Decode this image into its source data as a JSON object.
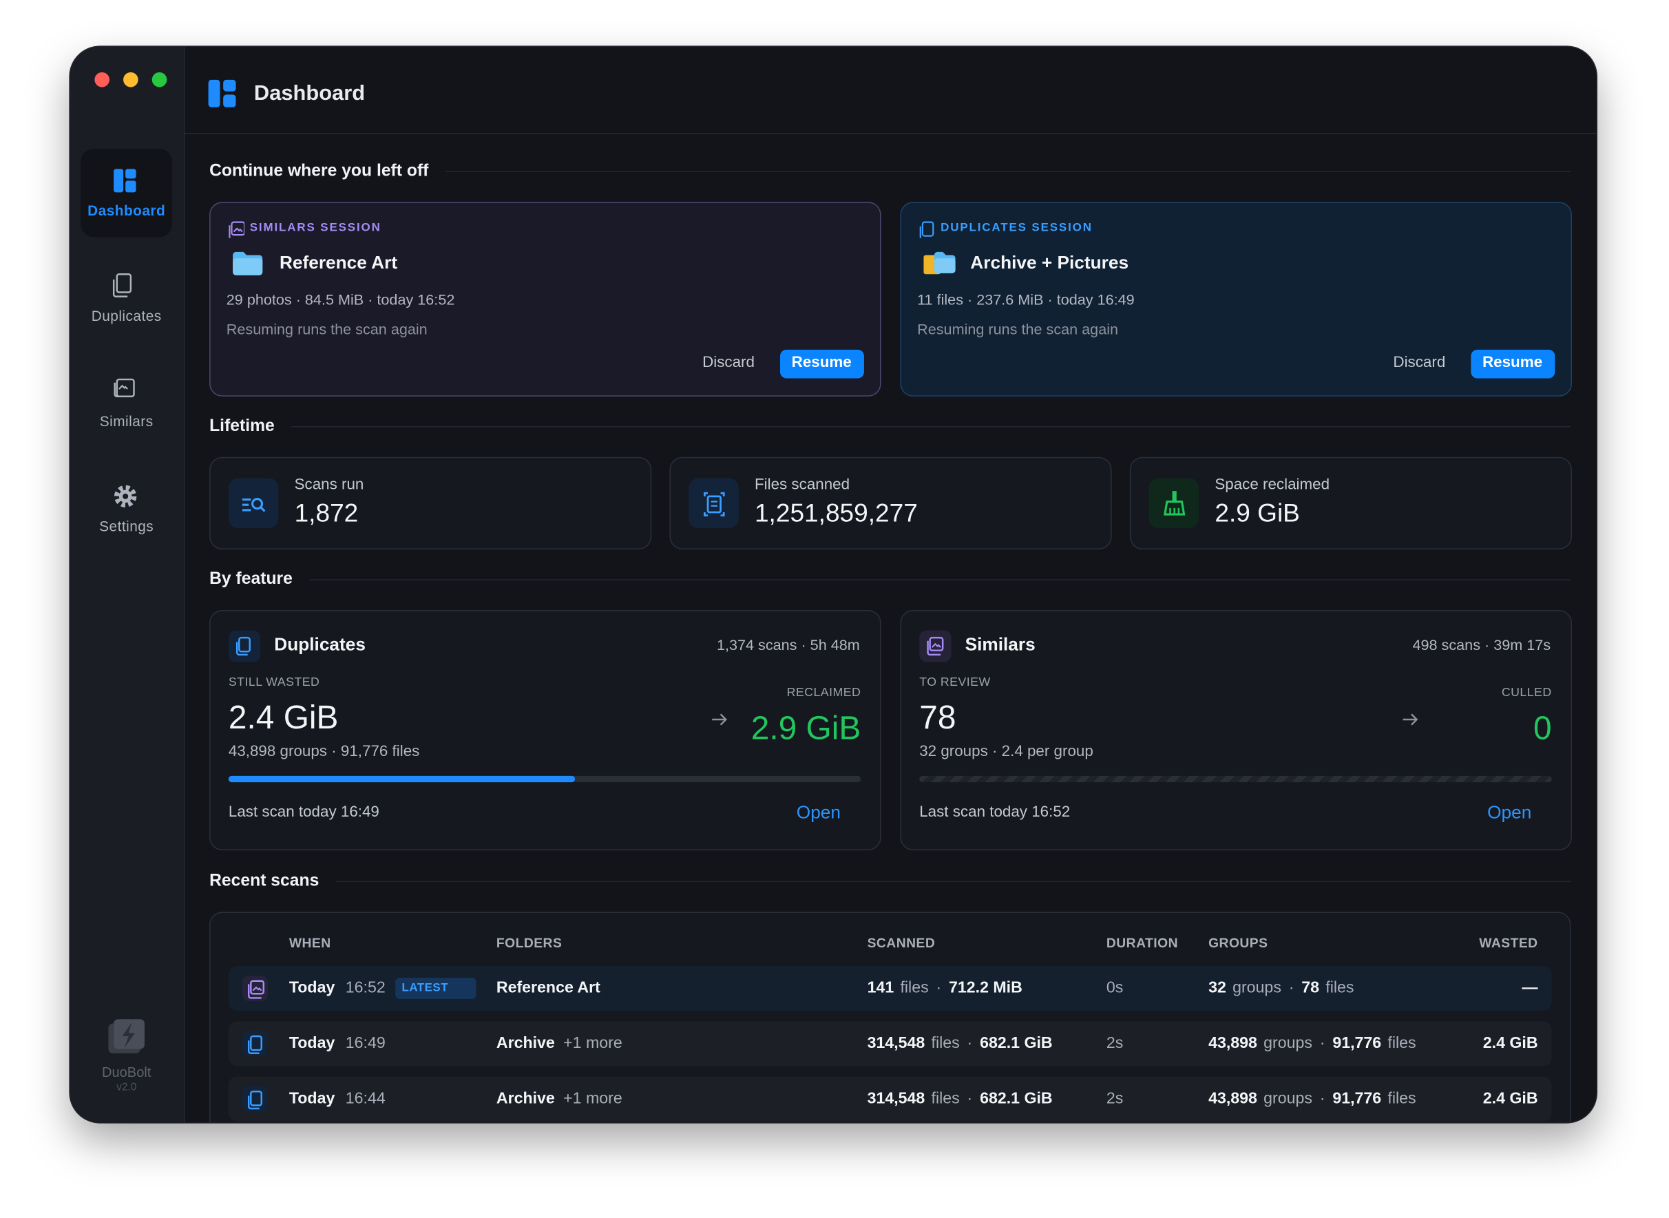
{
  "window": {
    "app_name": "DuoBolt",
    "version": "v2.0"
  },
  "header": {
    "title": "Dashboard"
  },
  "sidebar": {
    "items": [
      {
        "label": "Dashboard",
        "active": true
      },
      {
        "label": "Duplicates"
      },
      {
        "label": "Similars"
      },
      {
        "label": "Settings"
      }
    ]
  },
  "continue": {
    "heading": "Continue where you left off",
    "sessions": [
      {
        "kind": "SIMILARS SESSION",
        "name": "Reference Art",
        "meta": "29 photos · 84.5 MiB · today 16:52",
        "note": "Resuming runs the scan again",
        "discard": "Discard",
        "resume": "Resume"
      },
      {
        "kind": "DUPLICATES SESSION",
        "name": "Archive + Pictures",
        "meta": "11 files · 237.6 MiB · today 16:49",
        "note": "Resuming runs the scan again",
        "discard": "Discard",
        "resume": "Resume"
      }
    ]
  },
  "lifetime": {
    "heading": "Lifetime",
    "stats": [
      {
        "label": "Scans run",
        "value": "1,872"
      },
      {
        "label": "Files scanned",
        "value": "1,251,859,277"
      },
      {
        "label": "Space reclaimed",
        "value": "2.9 GiB"
      }
    ]
  },
  "by_feature": {
    "heading": "By feature",
    "cards": [
      {
        "name": "Duplicates",
        "summary": "1,374 scans · 5h 48m",
        "primary_label": "STILL WASTED",
        "primary_value": "2.4 GiB",
        "detail": "43,898 groups · 91,776 files",
        "secondary_label": "RECLAIMED",
        "secondary_value": "2.9 GiB",
        "last_scan": "Last scan today 16:49",
        "open": "Open"
      },
      {
        "name": "Similars",
        "summary": "498 scans · 39m 17s",
        "primary_label": "TO REVIEW",
        "primary_value": "78",
        "detail": "32 groups · 2.4 per group",
        "secondary_label": "CULLED",
        "secondary_value": "0",
        "last_scan": "Last scan today 16:52",
        "open": "Open"
      }
    ]
  },
  "recent_scans": {
    "heading": "Recent scans",
    "columns": [
      "WHEN",
      "FOLDERS",
      "SCANNED",
      "DURATION",
      "GROUPS",
      "WASTED"
    ],
    "unit_files": "files",
    "unit_groups": "groups",
    "separator": "·",
    "rows": [
      {
        "kind": "similars",
        "day": "Today",
        "time": "16:52",
        "badge": "LATEST",
        "folder": "Reference Art",
        "scanned_count": "141",
        "scanned_size": "712.2 MiB",
        "duration": "0s",
        "groups": "32",
        "files": "78",
        "wasted": "—"
      },
      {
        "kind": "duplicates",
        "day": "Today",
        "time": "16:49",
        "folder": "Archive",
        "more": "+1 more",
        "scanned_count": "314,548",
        "scanned_size": "682.1 GiB",
        "duration": "2s",
        "groups": "43,898",
        "files": "91,776",
        "wasted": "2.4 GiB"
      },
      {
        "kind": "duplicates",
        "day": "Today",
        "time": "16:44",
        "folder": "Archive",
        "more": "+1 more",
        "scanned_count": "314,548",
        "scanned_size": "682.1 GiB",
        "duration": "2s",
        "groups": "43,898",
        "files": "91,776",
        "wasted": "2.4 GiB"
      }
    ]
  }
}
